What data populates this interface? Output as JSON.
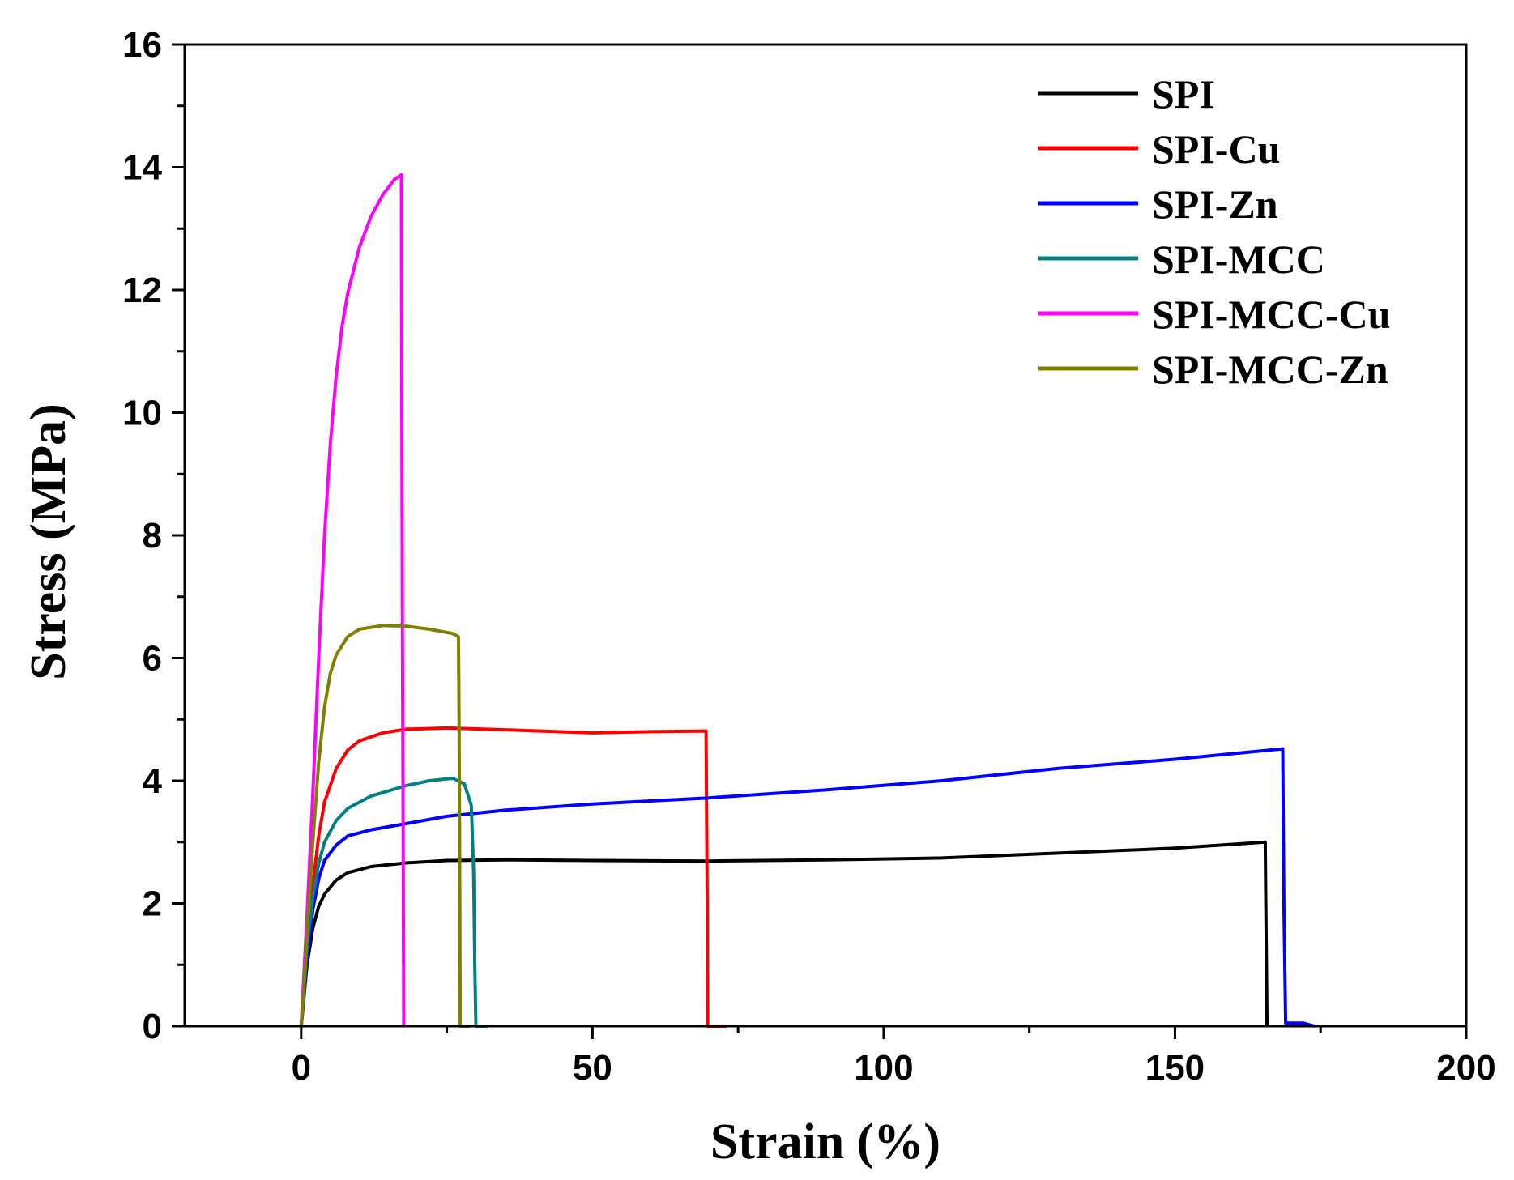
{
  "chart_data": {
    "type": "line",
    "title": "",
    "xlabel": "Strain (%)",
    "ylabel": "Stress (MPa)",
    "xlim": [
      -20,
      200
    ],
    "ylim": [
      0,
      16
    ],
    "xticks": [
      0,
      50,
      100,
      150,
      200
    ],
    "yticks": [
      0,
      2,
      4,
      6,
      8,
      10,
      12,
      14,
      16
    ],
    "legend_position": "top-right",
    "grid": false,
    "series": [
      {
        "name": "SPI",
        "color": "#000000",
        "points": [
          [
            0,
            0
          ],
          [
            0.5,
            0.5
          ],
          [
            1,
            1.0
          ],
          [
            2,
            1.6
          ],
          [
            3,
            1.95
          ],
          [
            4,
            2.15
          ],
          [
            6,
            2.38
          ],
          [
            8,
            2.5
          ],
          [
            12,
            2.6
          ],
          [
            18,
            2.66
          ],
          [
            25,
            2.7
          ],
          [
            35,
            2.71
          ],
          [
            50,
            2.7
          ],
          [
            70,
            2.69
          ],
          [
            90,
            2.71
          ],
          [
            110,
            2.74
          ],
          [
            130,
            2.82
          ],
          [
            150,
            2.9
          ],
          [
            165.5,
            3.0
          ],
          [
            165.6,
            2.0
          ],
          [
            165.8,
            0
          ]
        ]
      },
      {
        "name": "SPI-Cu",
        "color": "#ff0000",
        "points": [
          [
            0,
            0
          ],
          [
            0.5,
            0.6
          ],
          [
            1,
            1.3
          ],
          [
            2,
            2.3
          ],
          [
            3,
            3.1
          ],
          [
            4,
            3.65
          ],
          [
            6,
            4.2
          ],
          [
            8,
            4.5
          ],
          [
            10,
            4.65
          ],
          [
            14,
            4.78
          ],
          [
            18,
            4.84
          ],
          [
            25,
            4.86
          ],
          [
            35,
            4.83
          ],
          [
            50,
            4.78
          ],
          [
            60,
            4.8
          ],
          [
            69.5,
            4.81
          ],
          [
            69.7,
            2.0
          ],
          [
            69.8,
            0
          ],
          [
            73,
            0
          ]
        ]
      },
      {
        "name": "SPI-Zn",
        "color": "#0000ff",
        "points": [
          [
            0,
            0
          ],
          [
            0.5,
            0.5
          ],
          [
            1,
            1.1
          ],
          [
            2,
            1.9
          ],
          [
            3,
            2.4
          ],
          [
            4,
            2.7
          ],
          [
            6,
            2.95
          ],
          [
            8,
            3.1
          ],
          [
            12,
            3.2
          ],
          [
            18,
            3.3
          ],
          [
            25,
            3.42
          ],
          [
            35,
            3.52
          ],
          [
            50,
            3.62
          ],
          [
            70,
            3.72
          ],
          [
            90,
            3.85
          ],
          [
            110,
            4.0
          ],
          [
            130,
            4.2
          ],
          [
            150,
            4.35
          ],
          [
            168.5,
            4.52
          ],
          [
            168.7,
            2.0
          ],
          [
            169,
            0.05
          ],
          [
            172,
            0.05
          ],
          [
            174,
            0
          ]
        ]
      },
      {
        "name": "SPI-MCC",
        "color": "#008080",
        "points": [
          [
            0,
            0
          ],
          [
            0.5,
            0.6
          ],
          [
            1,
            1.3
          ],
          [
            2,
            2.1
          ],
          [
            3,
            2.65
          ],
          [
            4,
            3.0
          ],
          [
            6,
            3.35
          ],
          [
            8,
            3.55
          ],
          [
            12,
            3.75
          ],
          [
            18,
            3.92
          ],
          [
            22,
            4.0
          ],
          [
            26,
            4.04
          ],
          [
            28,
            3.95
          ],
          [
            29.2,
            3.6
          ],
          [
            29.6,
            2.5
          ],
          [
            29.8,
            1.0
          ],
          [
            30,
            0
          ],
          [
            32,
            0
          ]
        ]
      },
      {
        "name": "SPI-MCC-Cu",
        "color": "#ff00ff",
        "points": [
          [
            0,
            0
          ],
          [
            0.5,
            0.9
          ],
          [
            1,
            1.8
          ],
          [
            2,
            3.8
          ],
          [
            3,
            6.0
          ],
          [
            4,
            8.0
          ],
          [
            5,
            9.5
          ],
          [
            6,
            10.6
          ],
          [
            7,
            11.4
          ],
          [
            8,
            11.95
          ],
          [
            10,
            12.7
          ],
          [
            12,
            13.2
          ],
          [
            14,
            13.55
          ],
          [
            16,
            13.8
          ],
          [
            17.2,
            13.88
          ],
          [
            17.3,
            9.0
          ],
          [
            17.4,
            6.0
          ],
          [
            17.5,
            3.0
          ],
          [
            17.6,
            0
          ]
        ]
      },
      {
        "name": "SPI-MCC-Zn",
        "color": "#808000",
        "points": [
          [
            0,
            0
          ],
          [
            0.5,
            0.7
          ],
          [
            1,
            1.5
          ],
          [
            2,
            3.0
          ],
          [
            3,
            4.3
          ],
          [
            4,
            5.2
          ],
          [
            5,
            5.75
          ],
          [
            6,
            6.05
          ],
          [
            8,
            6.35
          ],
          [
            10,
            6.47
          ],
          [
            14,
            6.53
          ],
          [
            18,
            6.52
          ],
          [
            22,
            6.47
          ],
          [
            26,
            6.4
          ],
          [
            27,
            6.35
          ],
          [
            27.1,
            5.0
          ],
          [
            27.2,
            3.0
          ],
          [
            27.3,
            0
          ],
          [
            29,
            0
          ]
        ]
      }
    ]
  }
}
